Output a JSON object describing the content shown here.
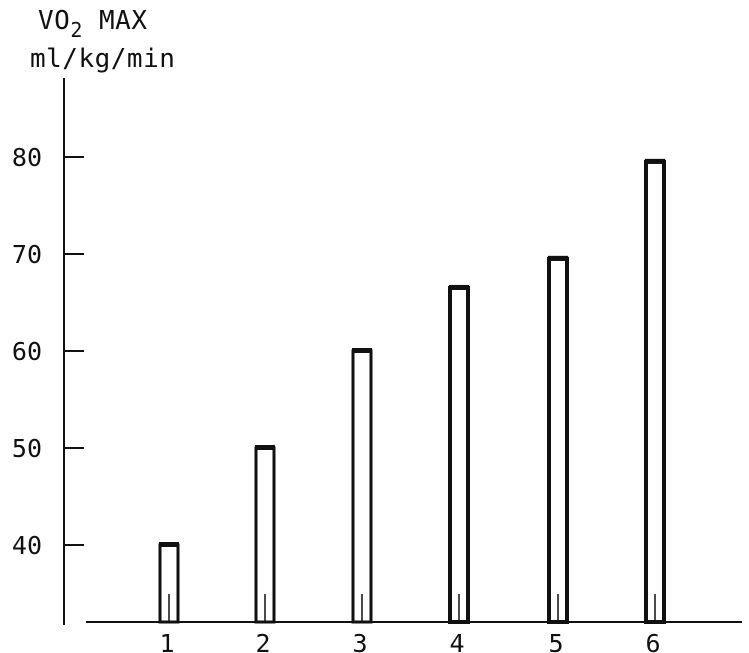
{
  "chart_data": {
    "type": "bar",
    "ylabel_line1": "VO2 MAX",
    "ylabel_line2": "ml/kg/min",
    "categories": [
      "1",
      "2",
      "3",
      "4",
      "5",
      "6"
    ],
    "values": [
      40,
      50,
      60,
      66.5,
      69.5,
      79.5
    ],
    "yticks": [
      40,
      50,
      60,
      70,
      80
    ],
    "ylim": [
      32,
      90
    ],
    "grid": false,
    "bar_color": "#111111",
    "background": "#ffffff"
  }
}
